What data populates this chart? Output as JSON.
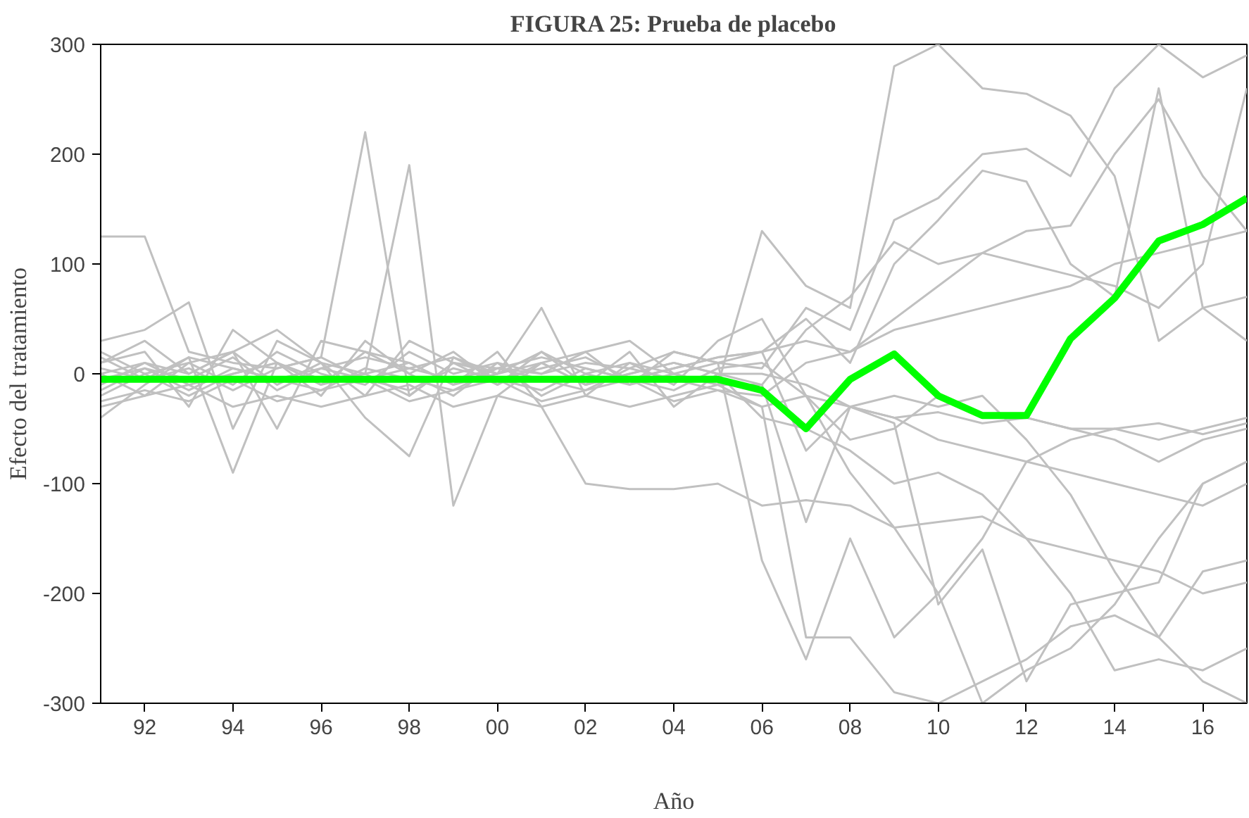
{
  "chart_data": {
    "type": "line",
    "title": "FIGURA 25: Prueba de placebo",
    "xlabel": "Año",
    "ylabel": "Efecto del tratamiento",
    "x": [
      1991,
      1992,
      1993,
      1994,
      1995,
      1996,
      1997,
      1998,
      1999,
      2000,
      2001,
      2002,
      2003,
      2004,
      2005,
      2006,
      2007,
      2008,
      2009,
      2010,
      2011,
      2012,
      2013,
      2014,
      2015,
      2016,
      2017
    ],
    "xlim": [
      1991,
      2017
    ],
    "xticks": [
      {
        "value": 1992,
        "label": "92"
      },
      {
        "value": 1994,
        "label": "94"
      },
      {
        "value": 1996,
        "label": "96"
      },
      {
        "value": 1998,
        "label": "98"
      },
      {
        "value": 2000,
        "label": "00"
      },
      {
        "value": 2002,
        "label": "02"
      },
      {
        "value": 2004,
        "label": "04"
      },
      {
        "value": 2006,
        "label": "06"
      },
      {
        "value": 2008,
        "label": "08"
      },
      {
        "value": 2010,
        "label": "10"
      },
      {
        "value": 2012,
        "label": "12"
      },
      {
        "value": 2014,
        "label": "14"
      },
      {
        "value": 2016,
        "label": "16"
      }
    ],
    "ylim": [
      -300,
      300
    ],
    "yticks": [
      -300,
      -200,
      -100,
      0,
      100,
      200,
      300
    ],
    "grid": false,
    "series": [
      {
        "color": "#c0c0c0",
        "values": [
          125,
          125,
          20,
          10,
          5,
          15,
          220,
          -20,
          10,
          5,
          0,
          10,
          5,
          20,
          10,
          5,
          60,
          40,
          140,
          160,
          200,
          205,
          180,
          260,
          300,
          270,
          290
        ]
      },
      {
        "color": "#c0c0c0",
        "values": [
          -40,
          -10,
          15,
          -90,
          10,
          -5,
          0,
          190,
          -120,
          -20,
          10,
          -10,
          20,
          -30,
          0,
          -10,
          -135,
          -30,
          -45,
          -210,
          -160,
          -280,
          -210,
          -200,
          -190,
          -100,
          -80
        ]
      },
      {
        "color": "#c0c0c0",
        "values": [
          30,
          40,
          65,
          -50,
          30,
          10,
          -40,
          -75,
          15,
          0,
          60,
          -20,
          10,
          0,
          -10,
          130,
          80,
          60,
          280,
          300,
          260,
          255,
          235,
          180,
          30,
          60,
          70
        ]
      },
      {
        "color": "#c0c0c0",
        "values": [
          -20,
          0,
          10,
          20,
          -50,
          30,
          20,
          10,
          -10,
          20,
          -30,
          -100,
          -105,
          -105,
          -100,
          -120,
          -115,
          -120,
          -140,
          -135,
          -130,
          -150,
          -160,
          -170,
          -180,
          -200,
          -190
        ]
      },
      {
        "color": "#c0c0c0",
        "values": [
          10,
          20,
          -30,
          40,
          10,
          -20,
          30,
          0,
          20,
          -10,
          10,
          20,
          30,
          0,
          10,
          20,
          50,
          10,
          100,
          140,
          185,
          175,
          100,
          70,
          260,
          60,
          30
        ]
      },
      {
        "color": "#c0c0c0",
        "values": [
          0,
          -20,
          10,
          -10,
          20,
          0,
          -10,
          20,
          0,
          10,
          -20,
          0,
          10,
          -10,
          30,
          50,
          -20,
          -60,
          -50,
          -20,
          -40,
          -40,
          -50,
          -60,
          -80,
          -60,
          -50
        ]
      },
      {
        "color": "#c0c0c0",
        "values": [
          -10,
          10,
          0,
          20,
          -10,
          10,
          0,
          -20,
          10,
          0,
          20,
          -10,
          0,
          10,
          0,
          -40,
          -50,
          -70,
          -100,
          -90,
          -110,
          -150,
          -200,
          -270,
          -260,
          -270,
          -250
        ]
      },
      {
        "color": "#c0c0c0",
        "values": [
          20,
          0,
          -20,
          0,
          10,
          -10,
          20,
          0,
          -20,
          10,
          0,
          20,
          -10,
          0,
          -10,
          -10,
          40,
          70,
          120,
          100,
          110,
          130,
          135,
          200,
          250,
          180,
          130
        ]
      },
      {
        "color": "#c0c0c0",
        "values": [
          -30,
          -20,
          -10,
          -30,
          -20,
          -30,
          -20,
          -10,
          -30,
          -20,
          -30,
          -20,
          -30,
          -20,
          -10,
          -30,
          -240,
          -240,
          -290,
          -300,
          -280,
          -260,
          -230,
          -220,
          -240,
          -280,
          -300
        ]
      },
      {
        "color": "#c0c0c0",
        "values": [
          5,
          -5,
          15,
          5,
          -5,
          5,
          15,
          5,
          -5,
          5,
          15,
          5,
          -5,
          5,
          15,
          20,
          30,
          20,
          40,
          50,
          60,
          70,
          80,
          100,
          110,
          120,
          130
        ]
      },
      {
        "color": "#c0c0c0",
        "values": [
          -15,
          5,
          -5,
          15,
          -15,
          5,
          -5,
          -15,
          5,
          -5,
          -15,
          5,
          -5,
          -15,
          5,
          10,
          -20,
          -30,
          -40,
          -60,
          -70,
          -80,
          -90,
          -100,
          -110,
          -120,
          -100
        ]
      },
      {
        "color": "#c0c0c0",
        "values": [
          10,
          30,
          0,
          20,
          40,
          10,
          -20,
          30,
          10,
          -10,
          20,
          0,
          -10,
          20,
          10,
          -170,
          -260,
          -150,
          -240,
          -200,
          -150,
          -80,
          -60,
          -50,
          -60,
          -50,
          -40
        ]
      },
      {
        "color": "#c0c0c0",
        "values": [
          -5,
          5,
          -15,
          5,
          -5,
          -15,
          5,
          -5,
          -15,
          5,
          -5,
          -15,
          5,
          -5,
          -15,
          -20,
          10,
          20,
          50,
          80,
          110,
          100,
          90,
          80,
          60,
          100,
          260
        ]
      },
      {
        "color": "#c0c0c0",
        "values": [
          15,
          -5,
          5,
          -15,
          5,
          15,
          -5,
          5,
          15,
          -5,
          5,
          15,
          -5,
          5,
          15,
          20,
          -70,
          -30,
          -20,
          -30,
          -20,
          -60,
          -110,
          -180,
          -240,
          -180,
          -170
        ]
      },
      {
        "color": "#c0c0c0",
        "values": [
          0,
          10,
          -10,
          0,
          10,
          -10,
          0,
          10,
          -10,
          0,
          10,
          -10,
          0,
          10,
          0,
          0,
          -10,
          -30,
          -40,
          -35,
          -45,
          -40,
          -50,
          -50,
          -45,
          -55,
          -45
        ]
      },
      {
        "color": "#c0c0c0",
        "values": [
          -25,
          -15,
          -25,
          -5,
          -25,
          -15,
          -5,
          -25,
          -15,
          -5,
          -25,
          -15,
          -5,
          -25,
          -15,
          -30,
          -20,
          -90,
          -140,
          -200,
          -300,
          -270,
          -250,
          -210,
          -150,
          -100,
          -80
        ]
      },
      {
        "color": "#00ff00",
        "values": [
          -5,
          -5,
          -5,
          -5,
          -5,
          -5,
          -5,
          -5,
          -5,
          -5,
          -5,
          -5,
          -5,
          -5,
          -5,
          -15,
          -50,
          -5,
          18,
          -20,
          -38,
          -38,
          32,
          69,
          121,
          136,
          160
        ]
      }
    ]
  }
}
